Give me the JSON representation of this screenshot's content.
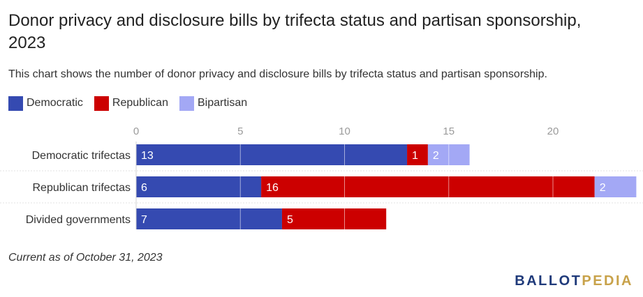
{
  "header": {
    "title": "Donor privacy and disclosure bills by trifecta status and partisan sponsorship, 2023",
    "subtitle": "This chart shows the number of donor privacy and disclosure bills by trifecta status and partisan sponsorship."
  },
  "footer": {
    "note": "Current as of October 31, 2023",
    "logo_part1": "BALLOT",
    "logo_part2": "PEDIA"
  },
  "colors": {
    "democratic": "#354ab1",
    "republican": "#cc0000",
    "bipartisan": "#a3a8f5",
    "logo_primary": "#1f3a7a",
    "logo_secondary": "#c8a24a"
  },
  "chart_data": {
    "type": "bar",
    "orientation": "horizontal",
    "stacked": true,
    "title": "Donor privacy and disclosure bills by trifecta status and partisan sponsorship, 2023",
    "subtitle": "This chart shows the number of donor privacy and disclosure bills by trifecta status and partisan sponsorship.",
    "categories": [
      "Democratic trifectas",
      "Republican trifectas",
      "Divided governments"
    ],
    "series": [
      {
        "name": "Democratic",
        "color": "#354ab1",
        "values": [
          13,
          6,
          7
        ]
      },
      {
        "name": "Republican",
        "color": "#cc0000",
        "values": [
          1,
          16,
          5
        ]
      },
      {
        "name": "Bipartisan",
        "color": "#a3a8f5",
        "values": [
          2,
          2,
          0
        ]
      }
    ],
    "xticks": [
      0,
      5,
      10,
      15,
      20
    ],
    "xlim": [
      0,
      24
    ],
    "tick_position": "top",
    "grid": true,
    "legend": "top-left",
    "data_labels": true
  }
}
